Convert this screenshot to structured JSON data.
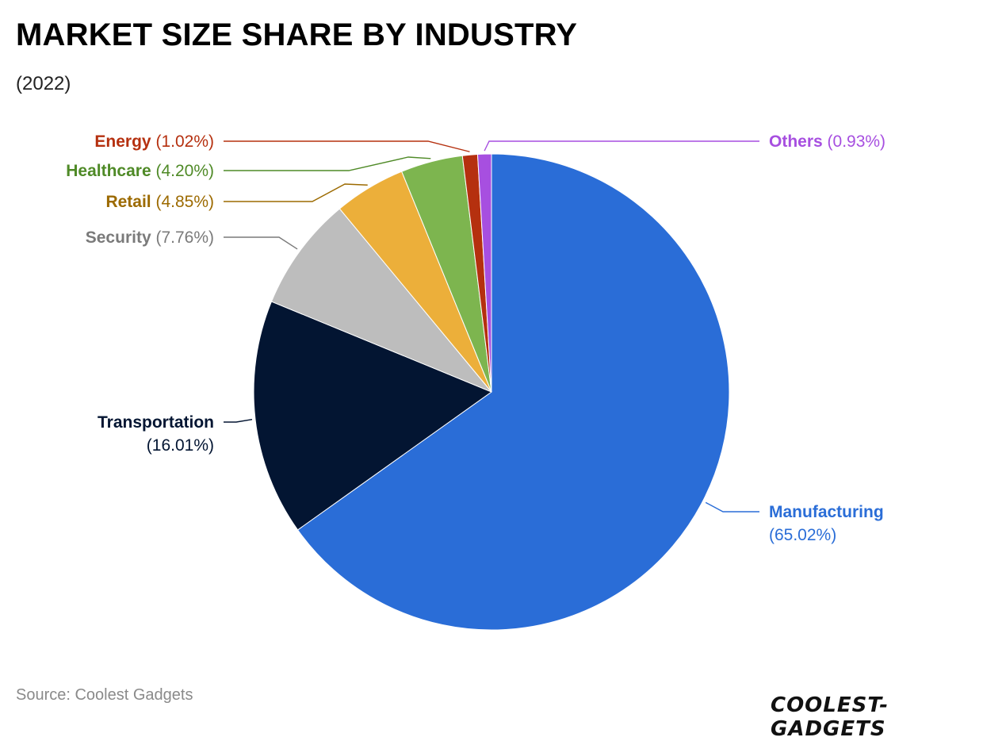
{
  "title": "MARKET SIZE SHARE BY INDUSTRY",
  "subtitle": "(2022)",
  "source": "Source: Coolest Gadgets",
  "logo_text": "COOLEST-GADGETS",
  "chart_data": {
    "type": "pie",
    "title": "MARKET SIZE SHARE BY INDUSTRY",
    "subtitle": "(2022)",
    "start_angle_deg": 0,
    "direction": "clockwise",
    "slices": [
      {
        "label": "Manufacturing",
        "value": 65.02,
        "display": "(65.02%)",
        "color": "#2a6dd7",
        "label_color": "#2a6dd7",
        "value_color": "#2a6dd7"
      },
      {
        "label": "Transportation",
        "value": 16.01,
        "display": "(16.01%)",
        "color": "#031532",
        "label_color": "#031532",
        "value_color": "#031532"
      },
      {
        "label": "Security",
        "value": 7.76,
        "display": "(7.76%)",
        "color": "#bdbdbd",
        "label_color": "#7a7a7a",
        "value_color": "#7a7a7a"
      },
      {
        "label": "Retail",
        "value": 4.85,
        "display": "(4.85%)",
        "color": "#ecaf3a",
        "label_color": "#9c6a00",
        "value_color": "#9c6a00"
      },
      {
        "label": "Healthcare",
        "value": 4.2,
        "display": "(4.20%)",
        "color": "#7db54f",
        "label_color": "#4f8a27",
        "value_color": "#4f8a27"
      },
      {
        "label": "Energy",
        "value": 1.02,
        "display": "(1.02%)",
        "color": "#b5300f",
        "label_color": "#b5300f",
        "value_color": "#b5300f"
      },
      {
        "label": "Others",
        "value": 0.93,
        "display": "(0.93%)",
        "color": "#a74fe0",
        "label_color": "#a74fe0",
        "value_color": "#a74fe0"
      }
    ]
  }
}
